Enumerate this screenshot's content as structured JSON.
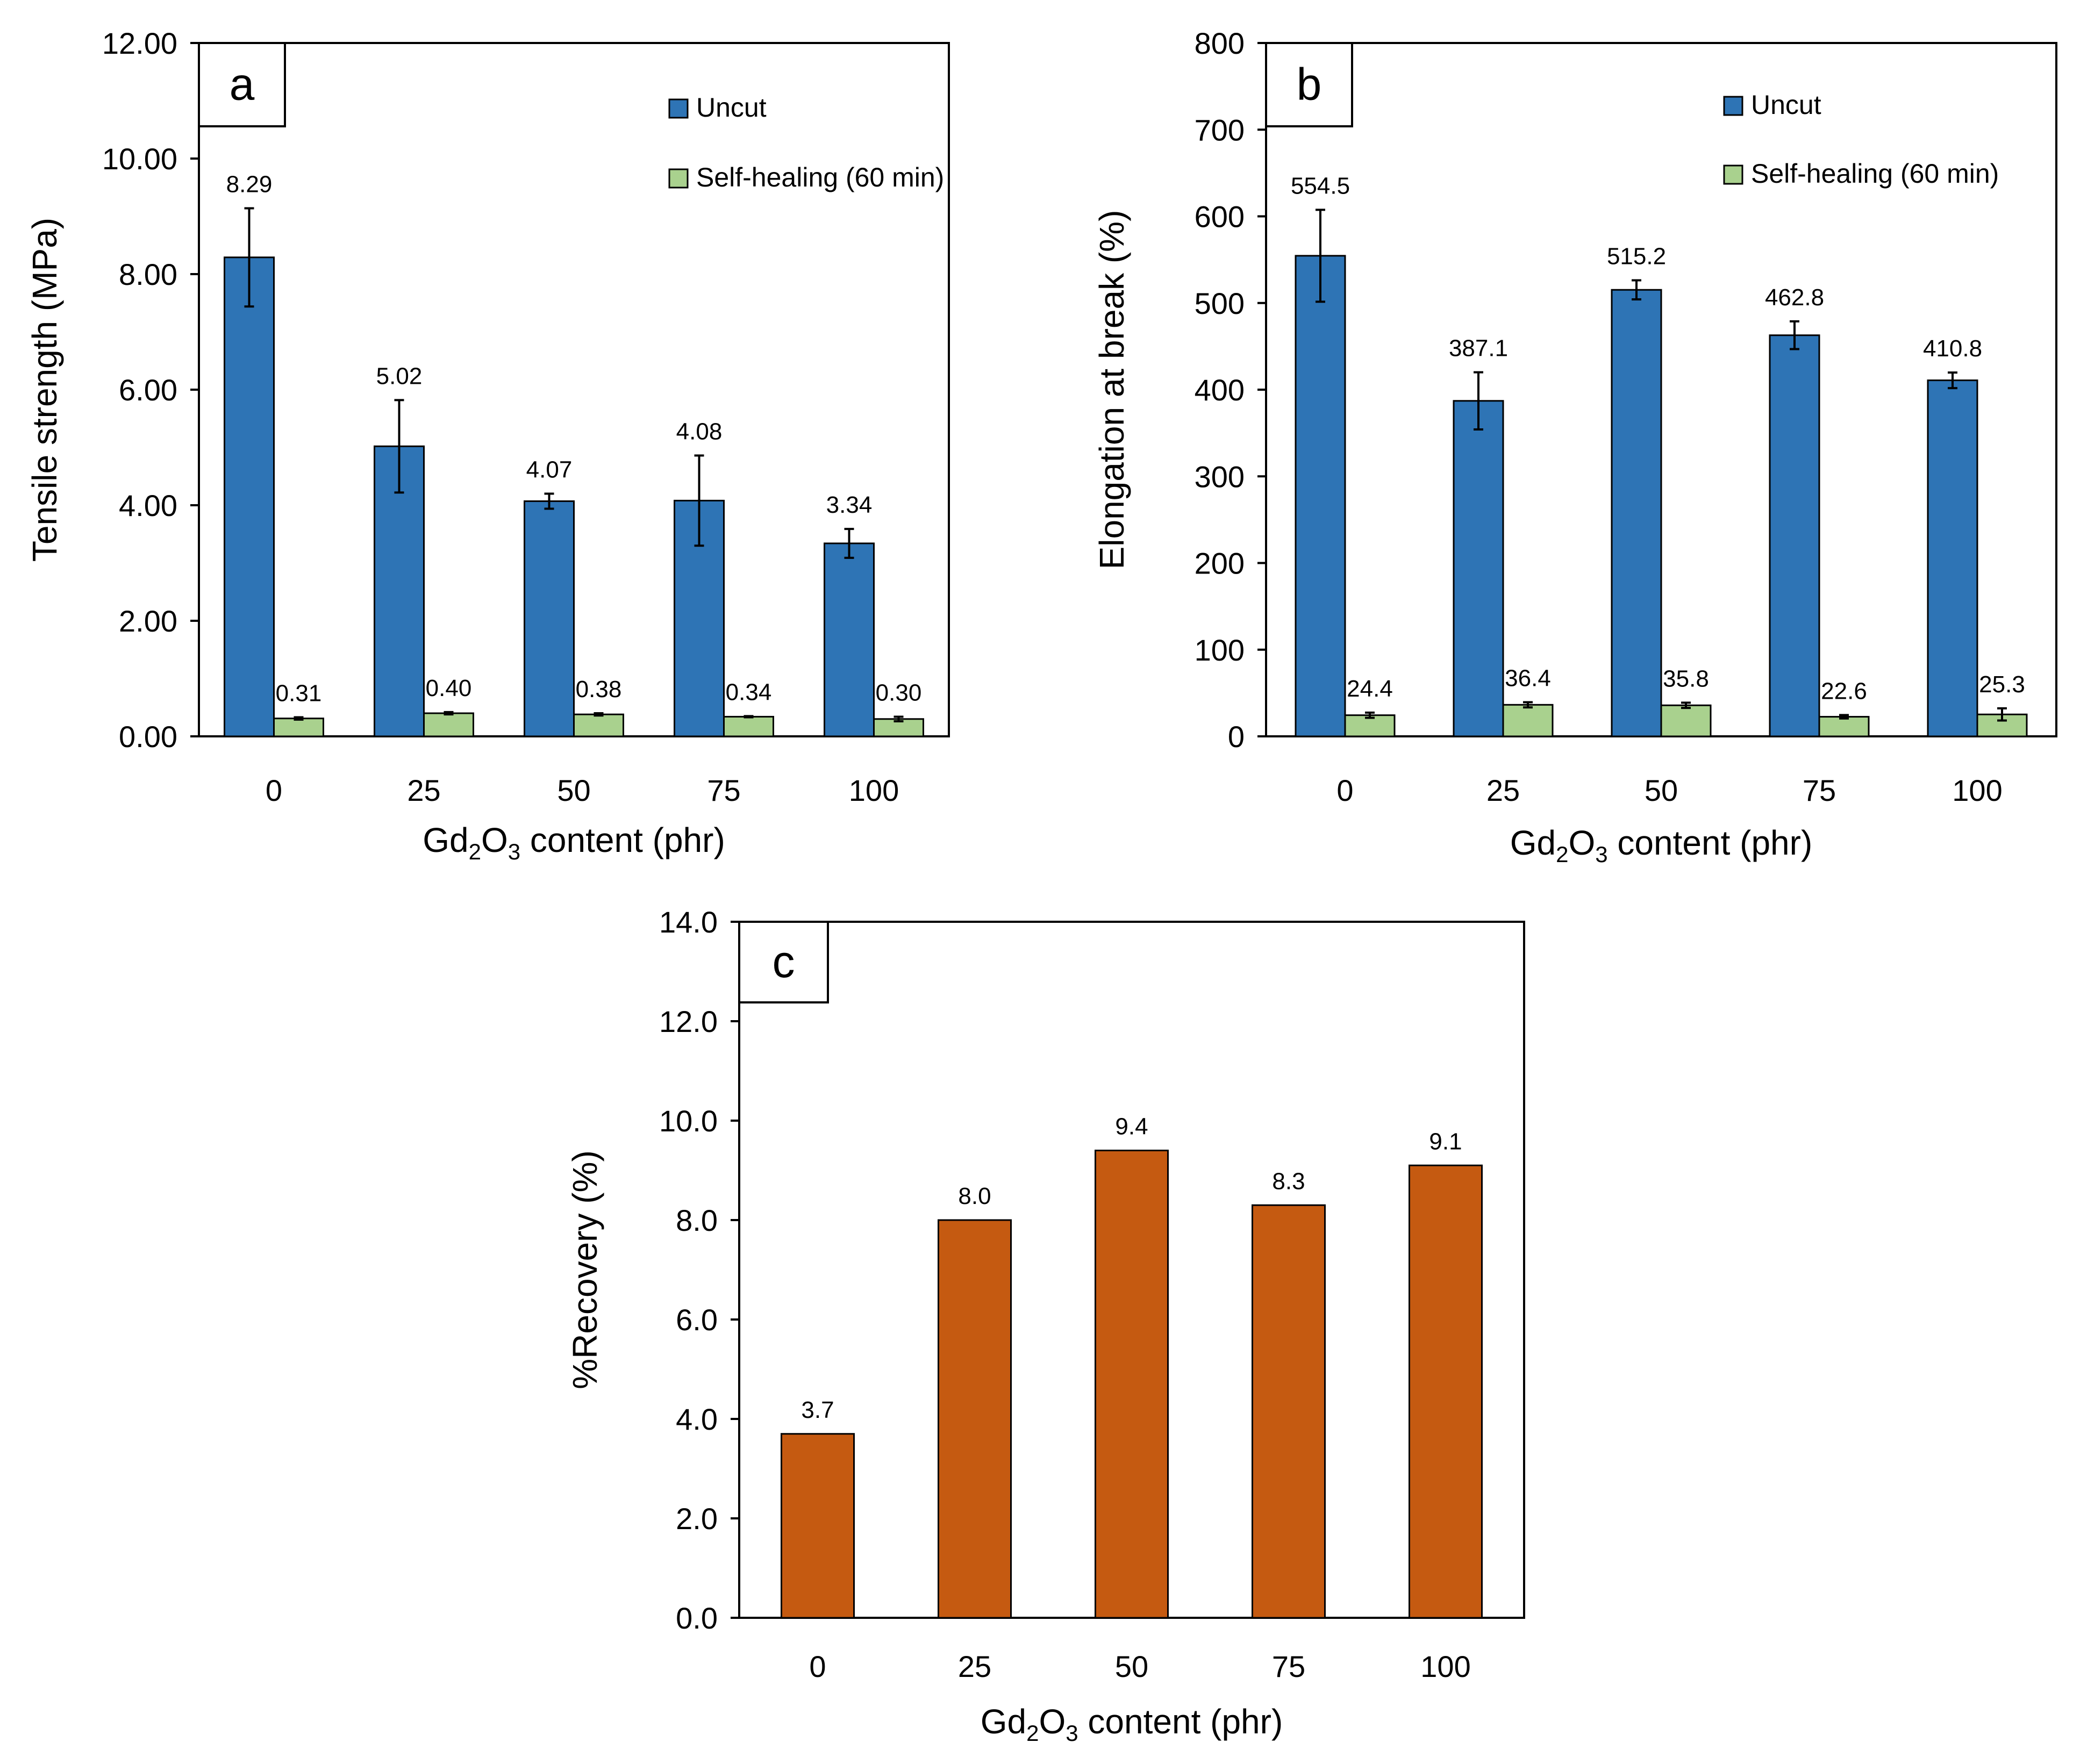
{
  "colors": {
    "uncut": "#2E74B5",
    "self_healing": "#A9D18E",
    "recovery": "#C55A11",
    "axis": "#000000"
  },
  "chart_data": [
    {
      "panel": "a",
      "type": "bar",
      "categories": [
        "0",
        "25",
        "50",
        "75",
        "100"
      ],
      "xlabel": "Gd",
      "xlabel_sub1": "2",
      "xlabel_mid": "O",
      "xlabel_sub2": "3",
      "xlabel_tail": " content (phr)",
      "ylabel": "Tensile strength (MPa)",
      "ylim": [
        0,
        12
      ],
      "yticks": [
        "0.00",
        "2.00",
        "4.00",
        "6.00",
        "8.00",
        "10.00",
        "12.00"
      ],
      "legend_position": "top-right",
      "series": [
        {
          "name": "Uncut",
          "values": [
            8.29,
            5.02,
            4.07,
            4.08,
            3.34
          ],
          "labels": [
            "8.29",
            "5.02",
            "4.07",
            "4.08",
            "3.34"
          ],
          "errors": [
            0.85,
            0.8,
            0.13,
            0.78,
            0.25
          ]
        },
        {
          "name": "Self-healing (60 min)",
          "values": [
            0.31,
            0.4,
            0.38,
            0.34,
            0.3
          ],
          "labels": [
            "0.31",
            "0.40",
            "0.38",
            "0.34",
            "0.30"
          ],
          "errors": [
            0.02,
            0.02,
            0.02,
            0.01,
            0.04
          ]
        }
      ]
    },
    {
      "panel": "b",
      "type": "bar",
      "categories": [
        "0",
        "25",
        "50",
        "75",
        "100"
      ],
      "xlabel": "Gd",
      "xlabel_sub1": "2",
      "xlabel_mid": "O",
      "xlabel_sub2": "3",
      "xlabel_tail": " content (phr)",
      "ylabel": "Elongation at break (%)",
      "ylim": [
        0,
        800
      ],
      "yticks": [
        "0",
        "100",
        "200",
        "300",
        "400",
        "500",
        "600",
        "700",
        "800"
      ],
      "legend_position": "top-right",
      "series": [
        {
          "name": "Uncut",
          "values": [
            554.5,
            387.1,
            515.2,
            462.8,
            410.8
          ],
          "labels": [
            "554.5",
            "387.1",
            "515.2",
            "462.8",
            "410.8"
          ],
          "errors": [
            53,
            33,
            11,
            16,
            9
          ]
        },
        {
          "name": "Self-healing (60 min)",
          "values": [
            24.4,
            36.4,
            35.8,
            22.6,
            25.3
          ],
          "labels": [
            "24.4",
            "36.4",
            "35.8",
            "22.6",
            "25.3"
          ],
          "errors": [
            3,
            3,
            3,
            2,
            7
          ]
        }
      ]
    },
    {
      "panel": "c",
      "type": "bar",
      "categories": [
        "0",
        "25",
        "50",
        "75",
        "100"
      ],
      "xlabel": "Gd",
      "xlabel_sub1": "2",
      "xlabel_mid": "O",
      "xlabel_sub2": "3",
      "xlabel_tail": " content (phr)",
      "ylabel": "%Recovery (%)",
      "ylim": [
        0,
        14
      ],
      "yticks": [
        "0.0",
        "2.0",
        "4.0",
        "6.0",
        "8.0",
        "10.0",
        "12.0",
        "14.0"
      ],
      "series": [
        {
          "name": "Recovery",
          "values": [
            3.7,
            8.0,
            9.4,
            8.3,
            9.1
          ],
          "labels": [
            "3.7",
            "8.0",
            "9.4",
            "8.3",
            "9.1"
          ]
        }
      ]
    }
  ]
}
